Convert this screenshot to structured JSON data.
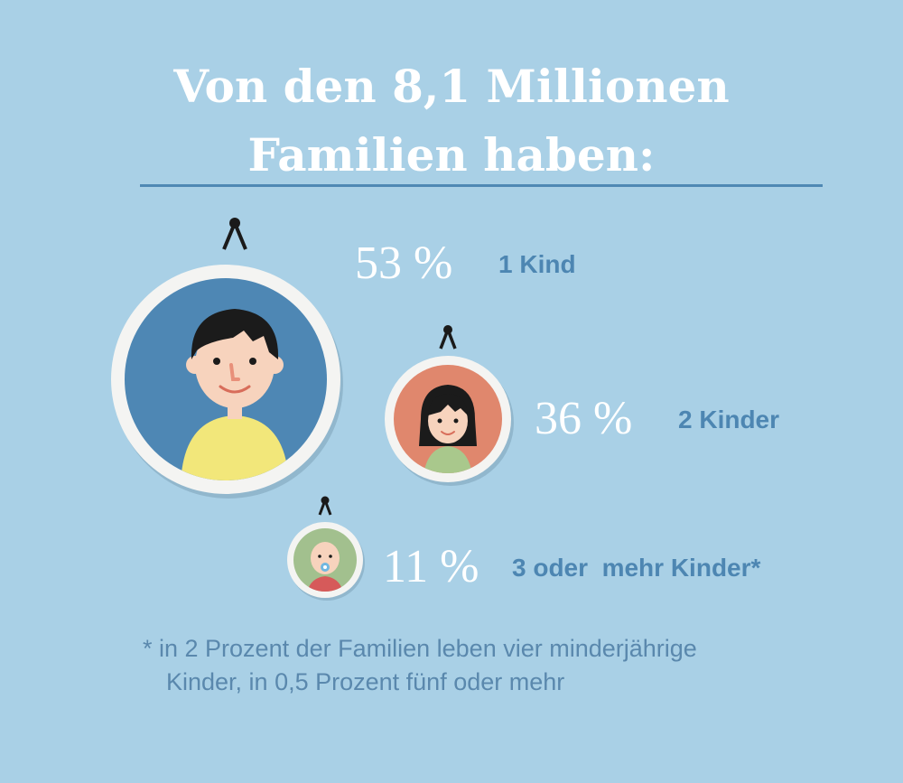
{
  "title": {
    "line1": "Von den 8,1 Millionen",
    "line2": "Familien haben:"
  },
  "items": [
    {
      "percent": "53 %",
      "label": "1 Kind",
      "avatar": "boy-icon",
      "frame_color": "#4e87b4"
    },
    {
      "percent": "36 %",
      "label": "2 Kinder",
      "avatar": "girl-icon",
      "frame_color": "#e0876d"
    },
    {
      "percent": "11 %",
      "label": "3 oder  mehr Kinder*",
      "avatar": "baby-icon",
      "frame_color": "#a2c08e"
    }
  ],
  "footnote": {
    "line1": "* in 2 Prozent der Familien leben vier minderjährige",
    "line2": "Kinder, in 0,5 Prozent fünf oder mehr"
  },
  "colors": {
    "background": "#a9d0e6",
    "divider": "#4f88b4",
    "label": "#4d86b2",
    "frame_ring": "#f4f4f2"
  }
}
